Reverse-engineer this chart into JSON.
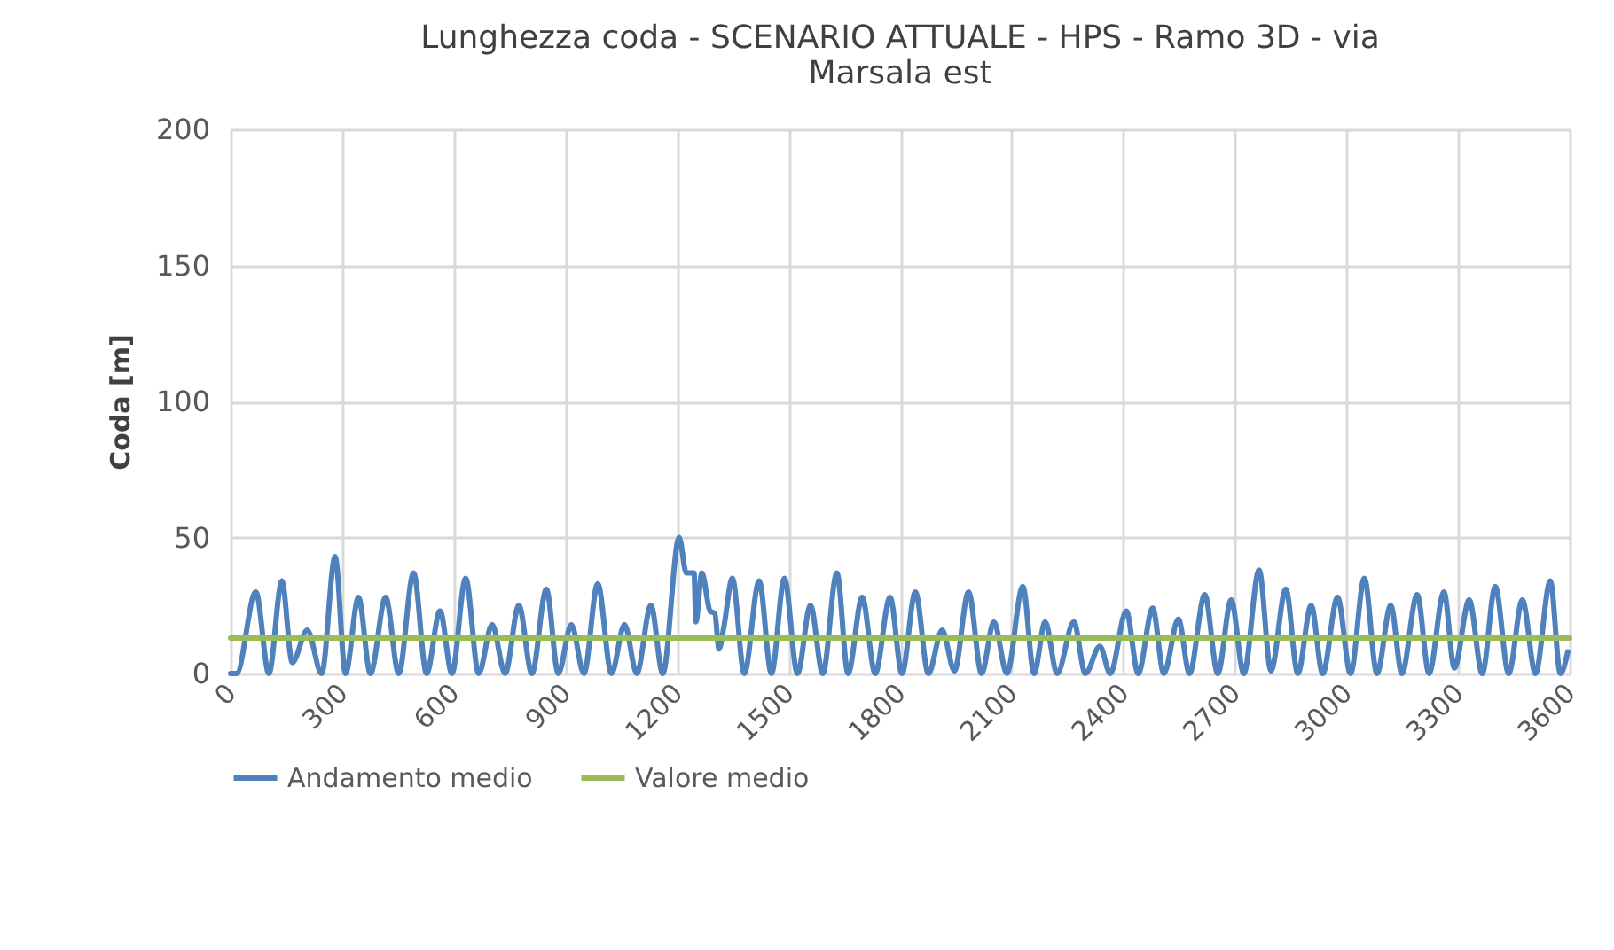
{
  "chart_data": {
    "type": "line",
    "title": "Lunghezza coda - SCENARIO ATTUALE  - HPS - Ramo 3D - via Marsala est",
    "ylabel": "Coda [m]",
    "xlim": [
      0,
      3600
    ],
    "xticks": [
      0,
      300,
      600,
      900,
      1200,
      1500,
      1800,
      2100,
      2400,
      2700,
      3000,
      3300,
      3600
    ],
    "ylim": [
      0,
      200
    ],
    "yticks": [
      0,
      50,
      100,
      150,
      200
    ],
    "grid": true,
    "legend": "bottom",
    "marker": "none",
    "line_style": "solid",
    "series": [
      {
        "name": "Andamento medio",
        "color": "#4f81bd",
        "x": [
          0,
          16,
          68,
          103,
          138,
          166,
          206,
          245,
          281,
          309,
          344,
          376,
          417,
          452,
          492,
          527,
          563,
          595,
          632,
          667,
          703,
          738,
          775,
          810,
          849,
          881,
          916,
          950,
          987,
          1024,
          1059,
          1092,
          1130,
          1162,
          1206,
          1225,
          1246,
          1251,
          1267,
          1289,
          1302,
          1313,
          1326,
          1349,
          1381,
          1421,
          1454,
          1489,
          1524,
          1559,
          1592,
          1630,
          1660,
          1698,
          1733,
          1773,
          1805,
          1841,
          1876,
          1913,
          1946,
          1984,
          2019,
          2052,
          2087,
          2130,
          2160,
          2190,
          2222,
          2267,
          2298,
          2337,
          2365,
          2408,
          2440,
          2479,
          2509,
          2548,
          2578,
          2619,
          2654,
          2690,
          2724,
          2765,
          2797,
          2837,
          2869,
          2905,
          2936,
          2976,
          3011,
          3048,
          3082,
          3119,
          3149,
          3190,
          3222,
          3262,
          3290,
          3330,
          3365,
          3400,
          3436,
          3473,
          3508,
          3548,
          3575,
          3595
        ],
        "values": [
          0,
          0,
          30,
          0,
          34,
          4,
          16,
          0,
          43,
          0,
          28,
          0,
          28,
          0,
          37,
          0,
          23,
          0,
          35,
          0,
          18,
          0,
          25,
          0,
          31,
          0,
          18,
          0,
          33,
          0,
          18,
          0,
          25,
          0,
          50,
          37,
          37,
          19,
          37,
          23,
          22,
          9,
          17,
          35,
          0,
          34,
          0,
          35,
          0,
          25,
          0,
          37,
          0,
          28,
          0,
          28,
          0,
          30,
          0,
          16,
          1,
          30,
          0,
          19,
          0,
          32,
          0,
          19,
          0,
          19,
          0,
          10,
          0,
          23,
          0,
          24,
          0,
          20,
          0,
          29,
          0,
          27,
          0,
          38,
          1,
          31,
          0,
          25,
          0,
          28,
          0,
          35,
          0,
          25,
          0,
          29,
          0,
          30,
          2,
          27,
          0,
          32,
          0,
          27,
          0,
          34,
          0,
          8
        ]
      },
      {
        "name": "Valore medio",
        "color": "#9bbb59",
        "x": [
          0,
          3600
        ],
        "values": [
          13,
          13
        ]
      }
    ]
  }
}
